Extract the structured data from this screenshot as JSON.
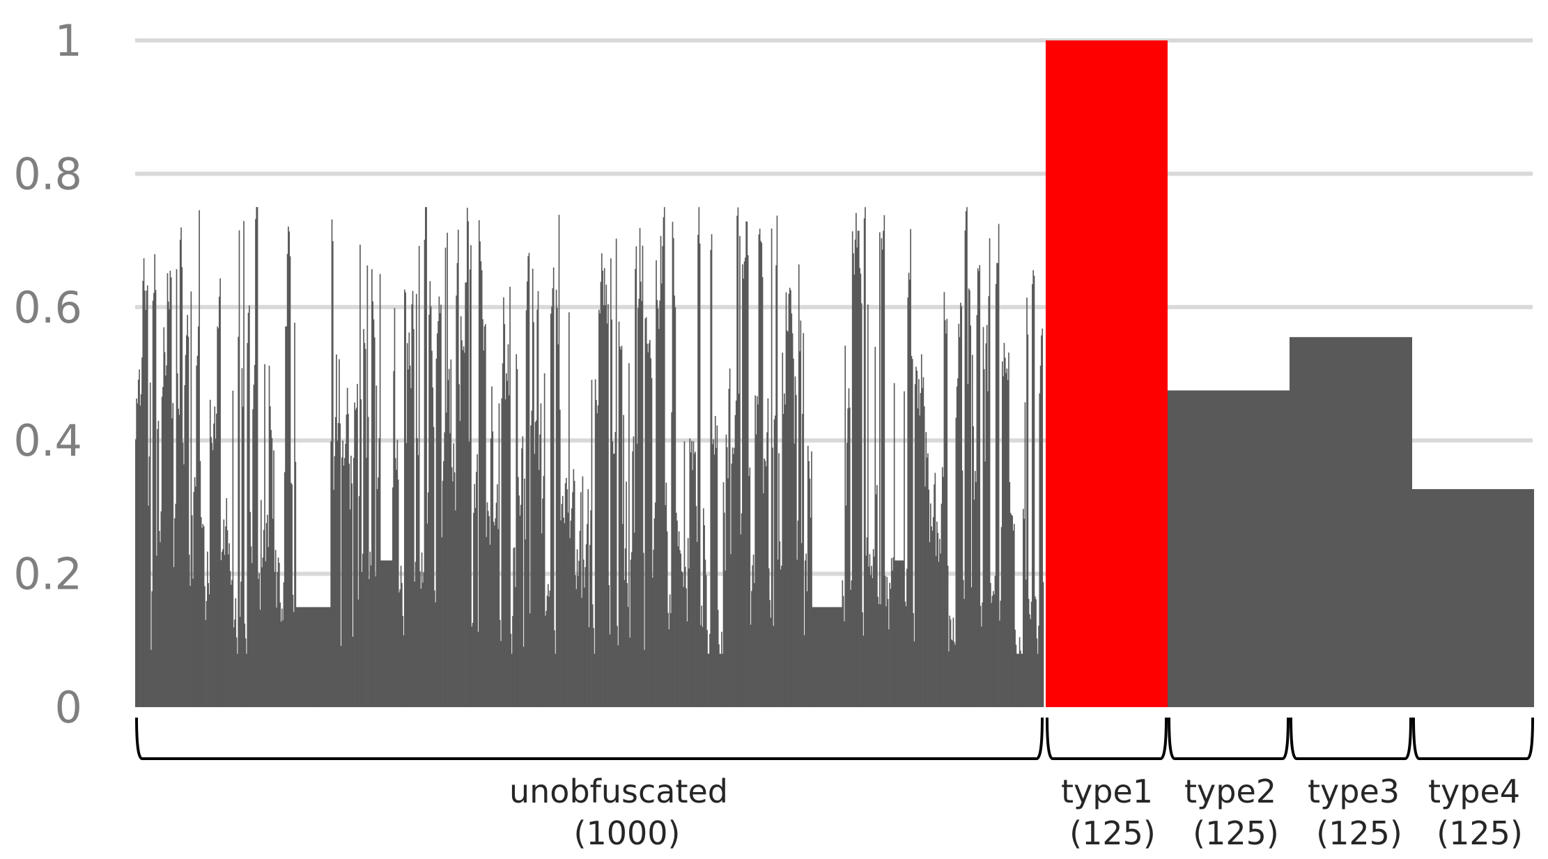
{
  "chart_data": {
    "type": "bar",
    "title": "",
    "xlabel": "",
    "ylabel": "",
    "ylim": [
      0,
      1
    ],
    "yticks": [
      {
        "value": 0,
        "label": "0"
      },
      {
        "value": 0.2,
        "label": "0.2"
      },
      {
        "value": 0.4,
        "label": "0.4"
      },
      {
        "value": 0.6,
        "label": "0.6"
      },
      {
        "value": 0.8,
        "label": "0.8"
      },
      {
        "value": 1,
        "label": "1"
      }
    ],
    "grid": true,
    "colors": {
      "default": "#595959",
      "highlight": "#ff0000",
      "grid": "#d9d9d9"
    },
    "groups": [
      {
        "name": "unobfuscated",
        "count_label": "(1000)",
        "count": 1000,
        "value_range": [
          0.08,
          0.75
        ],
        "value": null,
        "color": "#595959"
      },
      {
        "name": "type1",
        "count_label": "(125)",
        "count": 125,
        "value": 1.0,
        "color": "#ff0000"
      },
      {
        "name": "type2",
        "count_label": "(125)",
        "count": 125,
        "value": 0.475,
        "color": "#595959"
      },
      {
        "name": "type3",
        "count_label": "(125)",
        "count": 125,
        "value": 0.555,
        "color": "#595959"
      },
      {
        "name": "type4",
        "count_label": "(125)",
        "count": 125,
        "value": 0.327,
        "color": "#595959"
      }
    ]
  }
}
